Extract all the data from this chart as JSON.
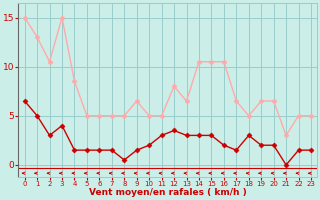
{
  "x": [
    0,
    1,
    2,
    3,
    4,
    5,
    6,
    7,
    8,
    9,
    10,
    11,
    12,
    13,
    14,
    15,
    16,
    17,
    18,
    19,
    20,
    21,
    22,
    23
  ],
  "rafales": [
    15,
    13,
    10.5,
    15,
    8.5,
    5,
    5,
    5,
    5,
    6.5,
    5,
    5,
    8,
    6.5,
    10.5,
    10.5,
    10.5,
    6.5,
    5,
    6.5,
    6.5,
    3,
    5,
    5
  ],
  "moyen": [
    6.5,
    5,
    3,
    4,
    1.5,
    1.5,
    1.5,
    1.5,
    0.5,
    1.5,
    2,
    3,
    3.5,
    3,
    3,
    3,
    2,
    1.5,
    3,
    2,
    2,
    0,
    1.5,
    1.5
  ],
  "color_rafales": "#ffaaaa",
  "color_moyen": "#cc0000",
  "bg_color": "#cceee8",
  "grid_color": "#99cccc",
  "xlabel": "Vent moyen/en rafales ( km/h )",
  "yticks": [
    0,
    5,
    10,
    15
  ],
  "ylim": [
    -1.2,
    16.5
  ],
  "xlim": [
    -0.5,
    23.5
  ],
  "tick_color": "#cc0000",
  "arrow_color": "#cc0000"
}
